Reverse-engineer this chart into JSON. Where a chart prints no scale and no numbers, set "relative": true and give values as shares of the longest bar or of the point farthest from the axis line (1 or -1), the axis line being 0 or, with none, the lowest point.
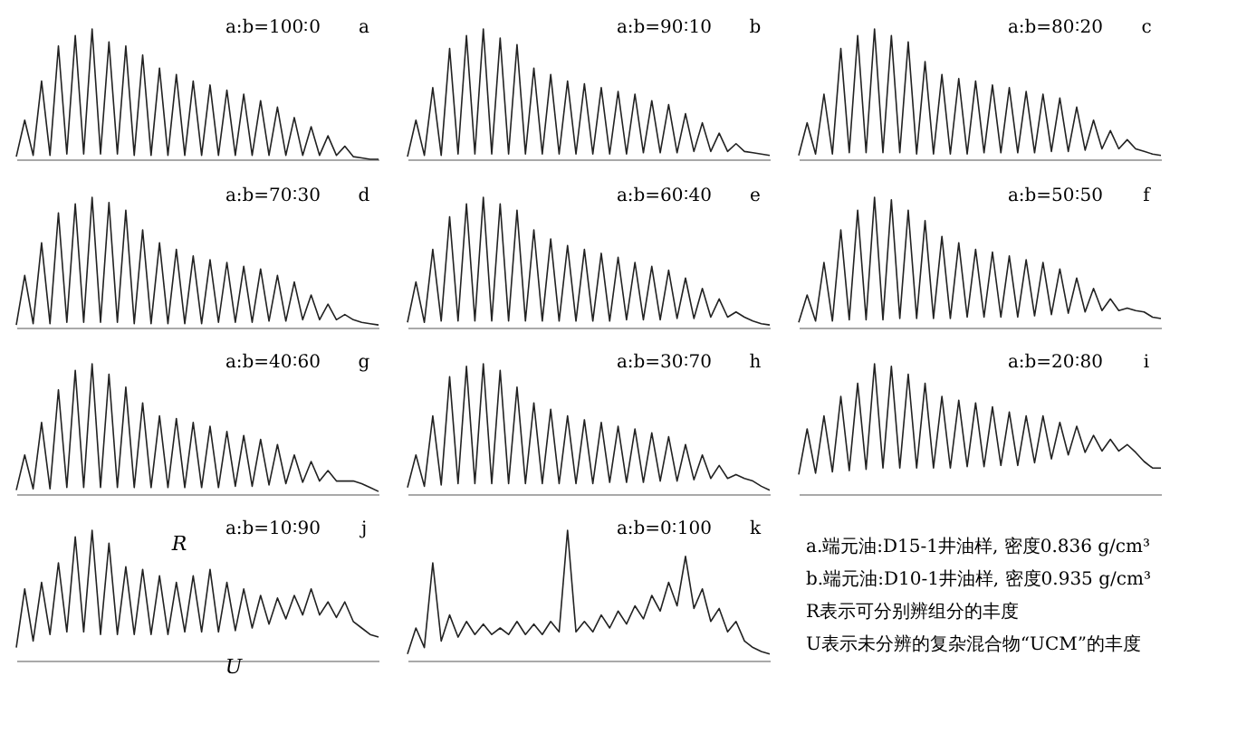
{
  "chart_data": [
    {
      "type": "line",
      "relative": true,
      "title": "a:b=100∶0",
      "annotations": [
        "a"
      ],
      "categories": [
        null,
        null,
        null,
        null,
        null,
        null,
        null,
        null,
        null,
        null,
        null,
        null,
        null,
        null,
        null,
        null,
        null,
        null,
        null,
        null,
        null,
        null,
        null,
        null,
        null,
        null,
        null,
        null,
        null,
        null,
        null,
        null,
        null,
        null,
        null,
        null,
        null,
        null,
        null,
        null,
        null,
        null,
        null,
        null
      ],
      "series": [
        {
          "color": "#222222",
          "values": [
            0.02,
            0.3,
            0.03,
            0.6,
            0.03,
            0.87,
            0.04,
            0.95,
            0.04,
            1.0,
            0.04,
            0.9,
            0.04,
            0.87,
            0.03,
            0.8,
            0.03,
            0.7,
            0.03,
            0.65,
            0.03,
            0.6,
            0.03,
            0.57,
            0.03,
            0.53,
            0.03,
            0.5,
            0.03,
            0.45,
            0.03,
            0.4,
            0.03,
            0.32,
            0.03,
            0.25,
            0.03,
            0.18,
            0.03,
            0.1,
            0.02,
            0.01,
            0.0,
            0.0
          ]
        }
      ]
    },
    {
      "type": "line",
      "relative": true,
      "title": "a:b=90∶10",
      "annotations": [
        "b"
      ],
      "categories": [
        null,
        null,
        null,
        null,
        null,
        null,
        null,
        null,
        null,
        null,
        null,
        null,
        null,
        null,
        null,
        null,
        null,
        null,
        null,
        null,
        null,
        null,
        null,
        null,
        null,
        null,
        null,
        null,
        null,
        null,
        null,
        null,
        null,
        null,
        null,
        null,
        null,
        null,
        null,
        null,
        null,
        null,
        null,
        null
      ],
      "series": [
        {
          "color": "#222222",
          "values": [
            0.02,
            0.3,
            0.03,
            0.55,
            0.03,
            0.85,
            0.04,
            0.95,
            0.04,
            1.0,
            0.04,
            0.93,
            0.04,
            0.88,
            0.04,
            0.7,
            0.04,
            0.65,
            0.04,
            0.6,
            0.04,
            0.58,
            0.04,
            0.55,
            0.04,
            0.52,
            0.04,
            0.5,
            0.05,
            0.45,
            0.05,
            0.42,
            0.05,
            0.35,
            0.06,
            0.28,
            0.06,
            0.2,
            0.06,
            0.12,
            0.06,
            0.05,
            0.04,
            0.03
          ]
        }
      ]
    },
    {
      "type": "line",
      "relative": true,
      "title": "a:b=80∶20",
      "annotations": [
        "c"
      ],
      "categories": [
        null,
        null,
        null,
        null,
        null,
        null,
        null,
        null,
        null,
        null,
        null,
        null,
        null,
        null,
        null,
        null,
        null,
        null,
        null,
        null,
        null,
        null,
        null,
        null,
        null,
        null,
        null,
        null,
        null,
        null,
        null,
        null,
        null,
        null,
        null,
        null,
        null,
        null,
        null,
        null,
        null,
        null,
        null,
        null
      ],
      "series": [
        {
          "color": "#222222",
          "values": [
            0.03,
            0.28,
            0.04,
            0.5,
            0.04,
            0.85,
            0.05,
            0.95,
            0.05,
            1.0,
            0.05,
            0.95,
            0.05,
            0.9,
            0.04,
            0.75,
            0.04,
            0.65,
            0.04,
            0.62,
            0.04,
            0.6,
            0.05,
            0.57,
            0.05,
            0.55,
            0.05,
            0.52,
            0.05,
            0.5,
            0.06,
            0.47,
            0.06,
            0.4,
            0.07,
            0.3,
            0.08,
            0.22,
            0.08,
            0.15,
            0.08,
            0.06,
            0.04,
            0.03
          ]
        }
      ]
    },
    {
      "type": "line",
      "relative": true,
      "title": "a:b=70∶30",
      "annotations": [
        "d"
      ],
      "categories": [
        null,
        null,
        null,
        null,
        null,
        null,
        null,
        null,
        null,
        null,
        null,
        null,
        null,
        null,
        null,
        null,
        null,
        null,
        null,
        null,
        null,
        null,
        null,
        null,
        null,
        null,
        null,
        null,
        null,
        null,
        null,
        null,
        null,
        null,
        null,
        null,
        null,
        null,
        null,
        null,
        null,
        null,
        null,
        null
      ],
      "series": [
        {
          "color": "#222222",
          "values": [
            0.02,
            0.4,
            0.03,
            0.65,
            0.03,
            0.88,
            0.04,
            0.95,
            0.04,
            1.0,
            0.04,
            0.96,
            0.04,
            0.9,
            0.03,
            0.75,
            0.03,
            0.65,
            0.03,
            0.6,
            0.03,
            0.55,
            0.03,
            0.52,
            0.04,
            0.5,
            0.04,
            0.47,
            0.04,
            0.45,
            0.05,
            0.4,
            0.05,
            0.35,
            0.06,
            0.25,
            0.06,
            0.18,
            0.06,
            0.1,
            0.06,
            0.04,
            0.03,
            0.02
          ]
        }
      ]
    },
    {
      "type": "line",
      "relative": true,
      "title": "a:b=60∶40",
      "annotations": [
        "e"
      ],
      "categories": [
        null,
        null,
        null,
        null,
        null,
        null,
        null,
        null,
        null,
        null,
        null,
        null,
        null,
        null,
        null,
        null,
        null,
        null,
        null,
        null,
        null,
        null,
        null,
        null,
        null,
        null,
        null,
        null,
        null,
        null,
        null,
        null,
        null,
        null,
        null,
        null,
        null,
        null,
        null,
        null,
        null,
        null,
        null,
        null
      ],
      "series": [
        {
          "color": "#222222",
          "values": [
            0.04,
            0.35,
            0.04,
            0.6,
            0.05,
            0.85,
            0.05,
            0.95,
            0.05,
            1.0,
            0.05,
            0.95,
            0.05,
            0.9,
            0.05,
            0.75,
            0.05,
            0.68,
            0.05,
            0.63,
            0.05,
            0.6,
            0.05,
            0.57,
            0.05,
            0.54,
            0.06,
            0.5,
            0.06,
            0.47,
            0.06,
            0.44,
            0.07,
            0.38,
            0.07,
            0.3,
            0.08,
            0.22,
            0.08,
            0.12,
            0.08,
            0.05,
            0.03,
            0.02
          ]
        }
      ]
    },
    {
      "type": "line",
      "relative": true,
      "title": "a:b=50∶50",
      "annotations": [
        "f"
      ],
      "categories": [
        null,
        null,
        null,
        null,
        null,
        null,
        null,
        null,
        null,
        null,
        null,
        null,
        null,
        null,
        null,
        null,
        null,
        null,
        null,
        null,
        null,
        null,
        null,
        null,
        null,
        null,
        null,
        null,
        null,
        null,
        null,
        null,
        null,
        null,
        null,
        null,
        null,
        null,
        null,
        null,
        null,
        null,
        null,
        null
      ],
      "series": [
        {
          "color": "#222222",
          "values": [
            0.04,
            0.25,
            0.05,
            0.5,
            0.05,
            0.75,
            0.06,
            0.9,
            0.06,
            1.0,
            0.06,
            0.98,
            0.07,
            0.9,
            0.07,
            0.82,
            0.07,
            0.7,
            0.07,
            0.65,
            0.08,
            0.6,
            0.08,
            0.58,
            0.08,
            0.55,
            0.08,
            0.52,
            0.09,
            0.5,
            0.1,
            0.45,
            0.11,
            0.38,
            0.12,
            0.3,
            0.13,
            0.22,
            0.13,
            0.15,
            0.13,
            0.12,
            0.08,
            0.07
          ]
        }
      ]
    },
    {
      "type": "line",
      "relative": true,
      "title": "a:b=40∶60",
      "annotations": [
        "g"
      ],
      "categories": [
        null,
        null,
        null,
        null,
        null,
        null,
        null,
        null,
        null,
        null,
        null,
        null,
        null,
        null,
        null,
        null,
        null,
        null,
        null,
        null,
        null,
        null,
        null,
        null,
        null,
        null,
        null,
        null,
        null,
        null,
        null,
        null,
        null,
        null,
        null,
        null,
        null,
        null,
        null,
        null,
        null,
        null,
        null,
        null
      ],
      "series": [
        {
          "color": "#222222",
          "values": [
            0.03,
            0.3,
            0.04,
            0.55,
            0.04,
            0.8,
            0.05,
            0.95,
            0.05,
            1.0,
            0.05,
            0.92,
            0.05,
            0.82,
            0.05,
            0.7,
            0.05,
            0.6,
            0.05,
            0.58,
            0.05,
            0.55,
            0.05,
            0.52,
            0.05,
            0.48,
            0.06,
            0.45,
            0.06,
            0.42,
            0.07,
            0.38,
            0.08,
            0.3,
            0.09,
            0.25,
            0.1,
            0.18,
            0.1,
            0.1,
            0.1,
            0.08,
            0.05,
            0.02
          ]
        }
      ]
    },
    {
      "type": "line",
      "relative": true,
      "title": "a:b=30∶70",
      "annotations": [
        "h"
      ],
      "categories": [
        null,
        null,
        null,
        null,
        null,
        null,
        null,
        null,
        null,
        null,
        null,
        null,
        null,
        null,
        null,
        null,
        null,
        null,
        null,
        null,
        null,
        null,
        null,
        null,
        null,
        null,
        null,
        null,
        null,
        null,
        null,
        null,
        null,
        null,
        null,
        null,
        null,
        null,
        null,
        null,
        null,
        null,
        null,
        null
      ],
      "series": [
        {
          "color": "#222222",
          "values": [
            0.05,
            0.3,
            0.06,
            0.6,
            0.07,
            0.9,
            0.08,
            0.98,
            0.08,
            1.0,
            0.08,
            0.95,
            0.08,
            0.82,
            0.08,
            0.7,
            0.08,
            0.65,
            0.08,
            0.6,
            0.08,
            0.57,
            0.08,
            0.55,
            0.09,
            0.52,
            0.09,
            0.5,
            0.09,
            0.47,
            0.1,
            0.44,
            0.1,
            0.38,
            0.11,
            0.3,
            0.12,
            0.22,
            0.12,
            0.15,
            0.12,
            0.1,
            0.06,
            0.03
          ]
        }
      ]
    },
    {
      "type": "line",
      "relative": true,
      "title": "a:b=20∶80",
      "annotations": [
        "i"
      ],
      "categories": [
        null,
        null,
        null,
        null,
        null,
        null,
        null,
        null,
        null,
        null,
        null,
        null,
        null,
        null,
        null,
        null,
        null,
        null,
        null,
        null,
        null,
        null,
        null,
        null,
        null,
        null,
        null,
        null,
        null,
        null,
        null,
        null,
        null,
        null,
        null,
        null,
        null,
        null,
        null,
        null,
        null,
        null,
        null,
        null
      ],
      "series": [
        {
          "color": "#222222",
          "values": [
            0.15,
            0.5,
            0.16,
            0.6,
            0.17,
            0.75,
            0.18,
            0.85,
            0.19,
            1.0,
            0.2,
            0.98,
            0.2,
            0.92,
            0.2,
            0.85,
            0.2,
            0.75,
            0.2,
            0.72,
            0.21,
            0.7,
            0.21,
            0.67,
            0.22,
            0.63,
            0.22,
            0.6,
            0.24,
            0.6,
            0.27,
            0.55,
            0.3,
            0.52,
            0.32,
            0.45,
            0.33,
            0.42,
            0.33,
            0.38,
            0.32,
            0.25,
            0.2,
            0.2
          ]
        }
      ]
    },
    {
      "type": "line",
      "relative": true,
      "title": "a:b=10∶90",
      "annotations": [
        "j",
        "R",
        "U"
      ],
      "categories": [
        null,
        null,
        null,
        null,
        null,
        null,
        null,
        null,
        null,
        null,
        null,
        null,
        null,
        null,
        null,
        null,
        null,
        null,
        null,
        null,
        null,
        null,
        null,
        null,
        null,
        null,
        null,
        null,
        null,
        null,
        null,
        null,
        null,
        null,
        null,
        null,
        null,
        null,
        null,
        null,
        null,
        null,
        null,
        null
      ],
      "series": [
        {
          "color": "#222222",
          "values": [
            0.1,
            0.55,
            0.15,
            0.6,
            0.2,
            0.75,
            0.22,
            0.95,
            0.22,
            1.0,
            0.2,
            0.9,
            0.2,
            0.72,
            0.2,
            0.7,
            0.2,
            0.65,
            0.2,
            0.6,
            0.22,
            0.65,
            0.22,
            0.7,
            0.22,
            0.6,
            0.23,
            0.55,
            0.25,
            0.5,
            0.28,
            0.48,
            0.32,
            0.5,
            0.35,
            0.55,
            0.35,
            0.45,
            0.33,
            0.45,
            0.3,
            0.25,
            0.2,
            0.18
          ]
        }
      ]
    },
    {
      "type": "line",
      "relative": true,
      "title": "a:b=0∶100",
      "annotations": [
        "k"
      ],
      "categories": [
        null,
        null,
        null,
        null,
        null,
        null,
        null,
        null,
        null,
        null,
        null,
        null,
        null,
        null,
        null,
        null,
        null,
        null,
        null,
        null,
        null,
        null,
        null,
        null,
        null,
        null,
        null,
        null,
        null,
        null,
        null,
        null,
        null,
        null,
        null,
        null,
        null,
        null,
        null,
        null,
        null,
        null,
        null,
        null
      ],
      "series": [
        {
          "color": "#222222",
          "values": [
            0.05,
            0.25,
            0.1,
            0.75,
            0.15,
            0.35,
            0.18,
            0.3,
            0.2,
            0.28,
            0.2,
            0.25,
            0.2,
            0.3,
            0.2,
            0.28,
            0.2,
            0.3,
            0.22,
            1.0,
            0.22,
            0.3,
            0.22,
            0.35,
            0.25,
            0.38,
            0.28,
            0.42,
            0.32,
            0.5,
            0.38,
            0.6,
            0.42,
            0.8,
            0.4,
            0.55,
            0.3,
            0.4,
            0.22,
            0.3,
            0.15,
            0.1,
            0.07,
            0.05
          ]
        }
      ]
    },
    {
      "type": "other",
      "annotations": [
        "a.端元油:D15-1井油样, 密度0.836 g/cm³",
        "b.端元油:D10-1井油样, 密度0.935 g/cm³",
        "R表示可分别辨组分的丰度",
        "U表示未分辨的复杂混合物“UCM”的丰度"
      ]
    }
  ]
}
